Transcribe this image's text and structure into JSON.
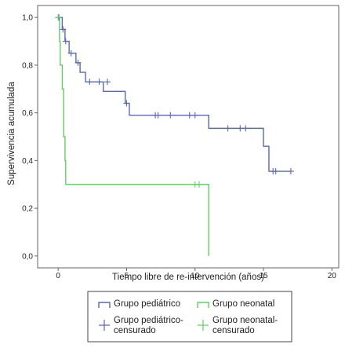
{
  "chart_data": {
    "type": "line",
    "xlabel": "Tiempo libre de re-intervención (años)",
    "ylabel": "Supervivencia acumulada",
    "xlim": [
      -1.5,
      20.5
    ],
    "ylim": [
      -0.05,
      1.05
    ],
    "xticks": [
      0,
      5,
      10,
      15,
      20
    ],
    "yticks": [
      0.0,
      0.2,
      0.4,
      0.6,
      0.8,
      1.0
    ],
    "xtick_labels": [
      "0",
      "5",
      "10",
      "15",
      "20"
    ],
    "ytick_labels": [
      "0,0",
      "0,2",
      "0,4",
      "0,6",
      "0,8",
      "1,0"
    ],
    "grid": false,
    "legend_position": "bottom",
    "colors": {
      "pediatrico": "#5a6aae",
      "neonatal": "#66cc66",
      "axis": "#666666"
    },
    "series": [
      {
        "name": "Grupo pediátrico",
        "kind": "step",
        "x": [
          0,
          0.3,
          0.5,
          0.8,
          1.3,
          1.6,
          2.0,
          3.3,
          4.9,
          5.2,
          11.0,
          15.0,
          15.4,
          17.0
        ],
        "y": [
          1.0,
          0.95,
          0.9,
          0.85,
          0.81,
          0.77,
          0.73,
          0.69,
          0.64,
          0.59,
          0.535,
          0.46,
          0.355,
          0.355
        ]
      },
      {
        "name": "Grupo neonatal",
        "kind": "step",
        "x": [
          0,
          0.1,
          0.15,
          0.3,
          0.4,
          0.5,
          0.55,
          11.0,
          11.0
        ],
        "y": [
          1.0,
          0.9,
          0.8,
          0.7,
          0.5,
          0.4,
          0.3,
          0.3,
          0.0
        ]
      },
      {
        "name": "Grupo pediátrico-censurado",
        "kind": "censor",
        "x": [
          0.05,
          0.35,
          0.55,
          0.95,
          1.45,
          2.3,
          3.0,
          3.6,
          5.0,
          7.1,
          7.3,
          8.2,
          9.6,
          10.0,
          12.4,
          13.3,
          13.7,
          15.7,
          15.9,
          17.0
        ],
        "y": [
          1.0,
          0.95,
          0.9,
          0.85,
          0.81,
          0.73,
          0.73,
          0.73,
          0.64,
          0.59,
          0.59,
          0.59,
          0.59,
          0.59,
          0.535,
          0.535,
          0.535,
          0.355,
          0.355,
          0.355
        ]
      },
      {
        "name": "Grupo neonatal-censurado",
        "kind": "censor",
        "x": [
          0.0,
          10.0,
          10.3
        ],
        "y": [
          1.0,
          0.3,
          0.3
        ]
      }
    ]
  }
}
